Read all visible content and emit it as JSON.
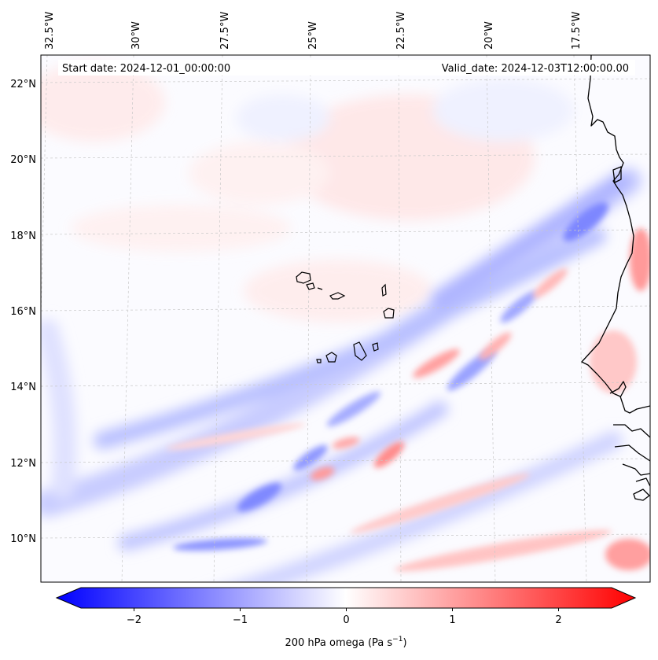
{
  "map": {
    "title_left": "Start date: 2024-12-01_00:00:00",
    "title_right": "Valid_date: 2024-12-03T12:00:00.00",
    "lon_ticks": [
      "32.5°W",
      "30°W",
      "27.5°W",
      "25°W",
      "22.5°W",
      "20°W",
      "17.5°W"
    ],
    "lat_ticks": [
      "22°N",
      "20°N",
      "18°N",
      "16°N",
      "14°N",
      "12°N",
      "10°N"
    ],
    "region": "Cape Verde / West African coast",
    "field": "200 hPa omega"
  },
  "colorbar": {
    "label": "200 hPa omega (Pa s",
    "label_sup": "−1",
    "label_close": ")",
    "ticks": [
      "−2",
      "−1",
      "0",
      "1",
      "2"
    ],
    "tick_values": [
      -2,
      -1,
      0,
      1,
      2
    ],
    "vmin": -2.5,
    "vmax": 2.5,
    "colormap": "bwr",
    "color_min": "#0000ff",
    "color_mid": "#ffffff",
    "color_max": "#ff0000"
  }
}
